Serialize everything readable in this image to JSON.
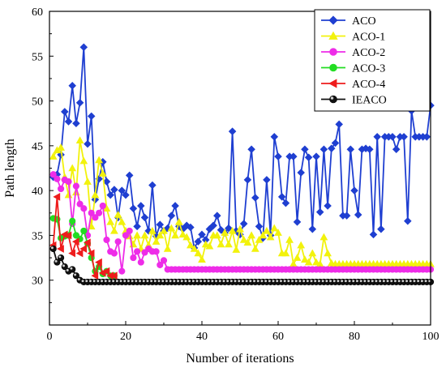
{
  "chart_data": {
    "type": "line",
    "title": "",
    "xlabel": "Number of iterations",
    "ylabel": "Path length",
    "xlim": [
      0,
      100
    ],
    "ylim": [
      25,
      60
    ],
    "xticks": [
      0,
      20,
      40,
      60,
      80,
      100
    ],
    "yticks": [
      30,
      35,
      40,
      45,
      50,
      55,
      60
    ],
    "grid": false,
    "legend_position": "top-right",
    "series": [
      {
        "name": "ACO",
        "color": "#1f3fd1",
        "marker": "diamond",
        "x": [
          1,
          2,
          3,
          4,
          5,
          6,
          7,
          8,
          9,
          10,
          11,
          12,
          13,
          14,
          15,
          16,
          17,
          18,
          19,
          20,
          21,
          22,
          23,
          24,
          25,
          26,
          27,
          28,
          29,
          30,
          31,
          32,
          33,
          34,
          35,
          36,
          37,
          38,
          39,
          40,
          41,
          42,
          43,
          44,
          45,
          46,
          47,
          48,
          49,
          50,
          51,
          52,
          53,
          54,
          55,
          56,
          57,
          58,
          59,
          60,
          61,
          62,
          63,
          64,
          65,
          66,
          67,
          68,
          69,
          70,
          71,
          72,
          73,
          74,
          75,
          76,
          77,
          78,
          79,
          80,
          81,
          82,
          83,
          84,
          85,
          86,
          87,
          88,
          89,
          90,
          91,
          92,
          93,
          94,
          95,
          96,
          97,
          98,
          99,
          100
        ],
        "y": [
          41.5,
          41.8,
          44.0,
          48.8,
          47.7,
          51.7,
          47.5,
          49.8,
          56.0,
          45.2,
          48.3,
          39.0,
          41.3,
          43.2,
          41.0,
          39.5,
          40.1,
          37.0,
          40.0,
          39.5,
          41.7,
          38.0,
          36.0,
          38.3,
          37.0,
          35.5,
          40.6,
          34.9,
          36.2,
          35.5,
          35.8,
          37.2,
          38.3,
          36.0,
          35.7,
          36.1,
          35.9,
          33.6,
          34.3,
          35.1,
          34.5,
          35.7,
          36.1,
          37.2,
          35.6,
          35.3,
          35.8,
          46.6,
          35.5,
          35.1,
          36.3,
          41.2,
          44.6,
          39.2,
          36.0,
          34.7,
          41.2,
          35.0,
          46.0,
          43.8,
          39.3,
          38.6,
          43.8,
          43.8,
          36.5,
          42.0,
          44.6,
          43.7,
          35.7,
          43.8,
          37.6,
          44.6,
          38.3,
          44.7,
          45.3,
          47.4,
          37.2,
          37.2,
          44.6,
          40.0,
          37.3,
          44.6,
          44.7,
          44.6,
          35.1,
          46.0,
          35.7,
          46.0,
          46.0,
          46.0,
          44.6,
          46.0,
          46.0,
          36.6,
          48.9,
          46.0,
          46.0,
          46.0,
          46.0,
          49.5
        ]
      },
      {
        "name": "ACO-1",
        "color": "#f2f20c",
        "marker": "triangle-up",
        "x": [
          1,
          2,
          3,
          4,
          5,
          6,
          7,
          8,
          9,
          10,
          11,
          12,
          13,
          14,
          15,
          16,
          17,
          18,
          19,
          20,
          21,
          22,
          23,
          24,
          25,
          26,
          27,
          28,
          29,
          30,
          31,
          32,
          33,
          34,
          35,
          36,
          37,
          38,
          39,
          40,
          41,
          42,
          43,
          44,
          45,
          46,
          47,
          48,
          49,
          50,
          51,
          52,
          53,
          54,
          55,
          56,
          57,
          58,
          59,
          60,
          61,
          62,
          63,
          64,
          65,
          66,
          67,
          68,
          69,
          70,
          71,
          72,
          73,
          74,
          75,
          76,
          77,
          78,
          79,
          80,
          81,
          82,
          83,
          84,
          85,
          86,
          87,
          88,
          89,
          90,
          91,
          92,
          93,
          94,
          95,
          96,
          97,
          98,
          99,
          100
        ],
        "y": [
          43.8,
          44.5,
          44.8,
          41.5,
          39.5,
          42.5,
          39.8,
          45.6,
          43.3,
          41.0,
          36.0,
          39.5,
          43.4,
          41.9,
          38.0,
          36.5,
          35.5,
          37.3,
          36.5,
          35.5,
          34.9,
          34.0,
          35.0,
          33.5,
          35.0,
          33.9,
          35.5,
          34.3,
          35.0,
          35.5,
          33.5,
          35.8,
          35.0,
          36.5,
          35.1,
          34.8,
          33.9,
          33.5,
          33.0,
          32.3,
          34.0,
          33.8,
          35.0,
          35.0,
          34.0,
          35.3,
          34.0,
          35.5,
          33.4,
          35.7,
          34.5,
          34.2,
          35.0,
          33.5,
          34.5,
          35.0,
          35.5,
          34.8,
          35.8,
          35.3,
          33.0,
          33.0,
          34.5,
          31.8,
          32.5,
          33.9,
          32.3,
          32.0,
          33.0,
          32.0,
          31.8,
          34.8,
          33.0,
          31.9,
          31.8,
          31.8,
          31.8,
          31.8,
          31.8,
          31.8,
          31.8,
          31.8,
          31.8,
          31.8,
          31.8,
          31.8,
          31.8,
          31.8,
          31.8,
          31.8,
          31.8,
          31.8,
          31.8,
          31.8,
          31.8,
          31.8,
          31.8,
          31.8,
          31.8,
          31.8
        ]
      },
      {
        "name": "ACO-2",
        "color": "#ee2ce8",
        "marker": "circle",
        "x": [
          1,
          2,
          3,
          4,
          5,
          6,
          7,
          8,
          9,
          10,
          11,
          12,
          13,
          14,
          15,
          16,
          17,
          18,
          19,
          20,
          21,
          22,
          23,
          24,
          25,
          26,
          27,
          28,
          29,
          30,
          31,
          32,
          33,
          34,
          35,
          36,
          37,
          38,
          39,
          40,
          41,
          42,
          43,
          44,
          45,
          46,
          47,
          48,
          49,
          50,
          51,
          52,
          53,
          54,
          55,
          56,
          57,
          58,
          59,
          60,
          61,
          62,
          63,
          64,
          65,
          66,
          67,
          68,
          69,
          70,
          71,
          72,
          73,
          74,
          75,
          76,
          77,
          78,
          79,
          80,
          81,
          82,
          83,
          84,
          85,
          86,
          87,
          88,
          89,
          90,
          91,
          92,
          93,
          94,
          95,
          96,
          97,
          98,
          99,
          100
        ],
        "y": [
          41.8,
          41.3,
          40.2,
          41.2,
          41.0,
          36.3,
          40.5,
          38.5,
          38.0,
          35.0,
          37.5,
          37.0,
          37.5,
          38.3,
          34.5,
          33.2,
          33.0,
          34.3,
          31.0,
          35.0,
          35.5,
          32.5,
          33.2,
          32.0,
          33.1,
          33.5,
          33.2,
          33.2,
          31.7,
          32.2,
          31.2,
          31.2,
          31.2,
          31.2,
          31.2,
          31.2,
          31.2,
          31.2,
          31.2,
          31.2,
          31.2,
          31.2,
          31.2,
          31.2,
          31.2,
          31.2,
          31.2,
          31.2,
          31.2,
          31.2,
          31.2,
          31.2,
          31.2,
          31.2,
          31.2,
          31.2,
          31.2,
          31.2,
          31.2,
          31.2,
          31.2,
          31.2,
          31.2,
          31.2,
          31.2,
          31.2,
          31.2,
          31.2,
          31.2,
          31.2,
          31.2,
          31.2,
          31.2,
          31.2,
          31.2,
          31.2,
          31.2,
          31.2,
          31.2,
          31.2,
          31.2,
          31.2,
          31.2,
          31.2,
          31.2,
          31.2,
          31.2,
          31.2,
          31.2,
          31.2,
          31.2,
          31.2,
          31.2,
          31.2,
          31.2,
          31.2,
          31.2,
          31.2,
          31.2,
          31.2
        ]
      },
      {
        "name": "ACO-3",
        "color": "#22dd22",
        "marker": "circle",
        "x": [
          1,
          2,
          3,
          4,
          5,
          6,
          7,
          8,
          9,
          10,
          11,
          12,
          13,
          14,
          15,
          16,
          17
        ],
        "y": [
          36.9,
          36.8,
          34.7,
          34.9,
          35.0,
          36.6,
          35.0,
          34.6,
          35.5,
          34.1,
          32.5,
          31.0,
          31.5,
          30.7,
          31.0,
          30.5,
          30.5
        ]
      },
      {
        "name": "ACO-4",
        "color": "#ee1c1c",
        "marker": "triangle-left",
        "x": [
          1,
          2,
          3,
          4,
          5,
          6,
          7,
          8,
          9,
          10,
          11,
          12,
          13,
          14,
          15,
          16,
          17
        ],
        "y": [
          33.9,
          39.3,
          33.5,
          35.1,
          35.0,
          33.0,
          34.3,
          33.0,
          33.5,
          34.2,
          33.0,
          30.5,
          32.0,
          30.8,
          31.0,
          30.5,
          30.5
        ]
      },
      {
        "name": "IEACO",
        "color": "#111111",
        "marker": "sphere",
        "x": [
          1,
          2,
          3,
          4,
          5,
          6,
          7,
          8,
          9,
          10,
          11,
          12,
          13,
          14,
          15,
          16,
          17,
          18,
          19,
          20,
          21,
          22,
          23,
          24,
          25,
          26,
          27,
          28,
          29,
          30,
          31,
          32,
          33,
          34,
          35,
          36,
          37,
          38,
          39,
          40,
          41,
          42,
          43,
          44,
          45,
          46,
          47,
          48,
          49,
          50,
          51,
          52,
          53,
          54,
          55,
          56,
          57,
          58,
          59,
          60,
          61,
          62,
          63,
          64,
          65,
          66,
          67,
          68,
          69,
          70,
          71,
          72,
          73,
          74,
          75,
          76,
          77,
          78,
          79,
          80,
          81,
          82,
          83,
          84,
          85,
          86,
          87,
          88,
          89,
          90,
          91,
          92,
          93,
          94,
          95,
          96,
          97,
          98,
          99,
          100
        ],
        "y": [
          33.5,
          32.0,
          32.5,
          31.5,
          31.0,
          31.2,
          30.5,
          30.0,
          29.8,
          29.8,
          29.8,
          29.8,
          29.8,
          29.8,
          29.8,
          29.8,
          29.8,
          29.8,
          29.8,
          29.8,
          29.8,
          29.8,
          29.8,
          29.8,
          29.8,
          29.8,
          29.8,
          29.8,
          29.8,
          29.8,
          29.8,
          29.8,
          29.8,
          29.8,
          29.8,
          29.8,
          29.8,
          29.8,
          29.8,
          29.8,
          29.8,
          29.8,
          29.8,
          29.8,
          29.8,
          29.8,
          29.8,
          29.8,
          29.8,
          29.8,
          29.8,
          29.8,
          29.8,
          29.8,
          29.8,
          29.8,
          29.8,
          29.8,
          29.8,
          29.8,
          29.8,
          29.8,
          29.8,
          29.8,
          29.8,
          29.8,
          29.8,
          29.8,
          29.8,
          29.8,
          29.8,
          29.8,
          29.8,
          29.8,
          29.8,
          29.8,
          29.8,
          29.8,
          29.8,
          29.8,
          29.8,
          29.8,
          29.8,
          29.8,
          29.8,
          29.8,
          29.8,
          29.8,
          29.8,
          29.8,
          29.8,
          29.8,
          29.8,
          29.8,
          29.8,
          29.8,
          29.8,
          29.8,
          29.8,
          29.8
        ]
      }
    ]
  }
}
